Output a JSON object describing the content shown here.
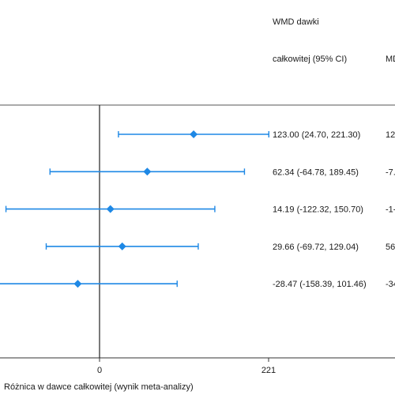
{
  "header": {
    "col1_line1": "WMD dawki",
    "col1_line2": "całkowitej (95% CI)",
    "col2_partial": "MD"
  },
  "chart_data": {
    "type": "forest",
    "title": "",
    "xlabel": "Różnica w dawce całkowitej (wynik meta-analizy)",
    "ylabel": "",
    "x_ticks": [
      {
        "value": 0,
        "label": "0"
      },
      {
        "value": 221,
        "label": "221"
      }
    ],
    "reference_line": 0,
    "marker_color": "#1e88e5",
    "rows": [
      {
        "estimate": 123.0,
        "lower": 24.7,
        "upper": 221.3,
        "label": "123.00 (24.70, 221.30)",
        "partial": "12"
      },
      {
        "estimate": 62.34,
        "lower": -64.78,
        "upper": 189.45,
        "label": "62.34 (-64.78, 189.45)",
        "partial": "-7."
      },
      {
        "estimate": 14.19,
        "lower": -122.32,
        "upper": 150.7,
        "label": "14.19 (-122.32, 150.70)",
        "partial": "-1-"
      },
      {
        "estimate": 29.66,
        "lower": -69.72,
        "upper": 129.04,
        "label": "29.66 (-69.72, 129.04)",
        "partial": "56"
      },
      {
        "estimate": -28.47,
        "lower": -158.39,
        "upper": 101.46,
        "label": "-28.47 (-158.39, 101.46)",
        "partial": "-34"
      }
    ]
  }
}
